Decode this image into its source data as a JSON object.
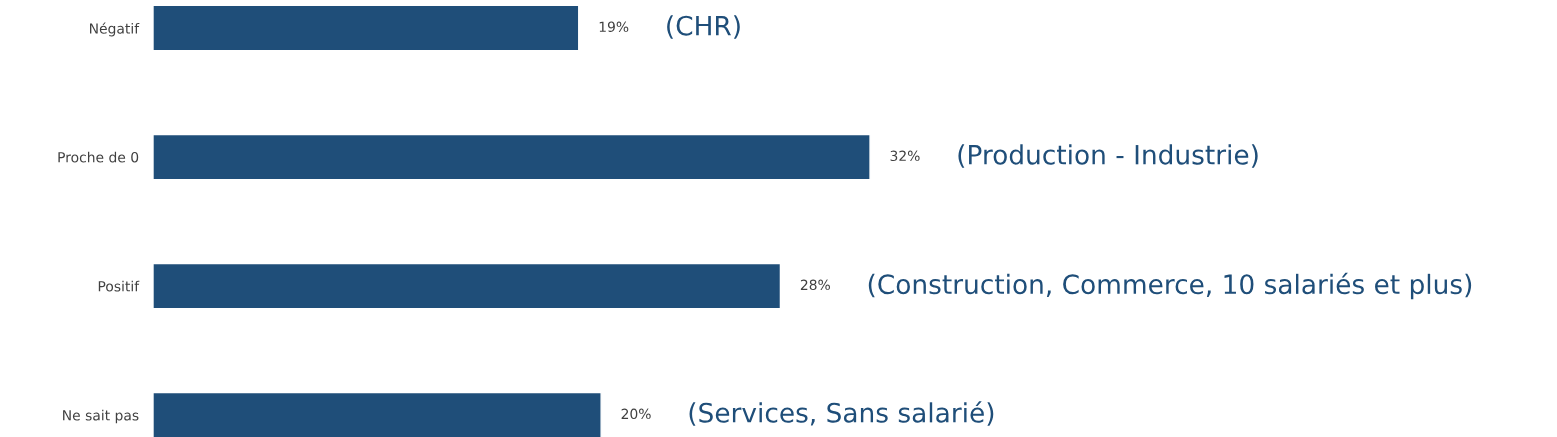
{
  "chart_data": {
    "type": "bar",
    "orientation": "horizontal",
    "categories": [
      "Négatif",
      "Proche de 0",
      "Positif",
      "Ne sait pas"
    ],
    "values": [
      19,
      32,
      28,
      20
    ],
    "color": "#1f4e79",
    "value_labels": [
      "19%",
      "32%",
      "28%",
      "20%"
    ],
    "grid": false,
    "legend": false,
    "annotations": [
      "(CHR)",
      "(Production - Industrie)",
      "(Construction, Commerce, 10 salariés et plus)",
      "(Services, Sans salarié)"
    ]
  }
}
